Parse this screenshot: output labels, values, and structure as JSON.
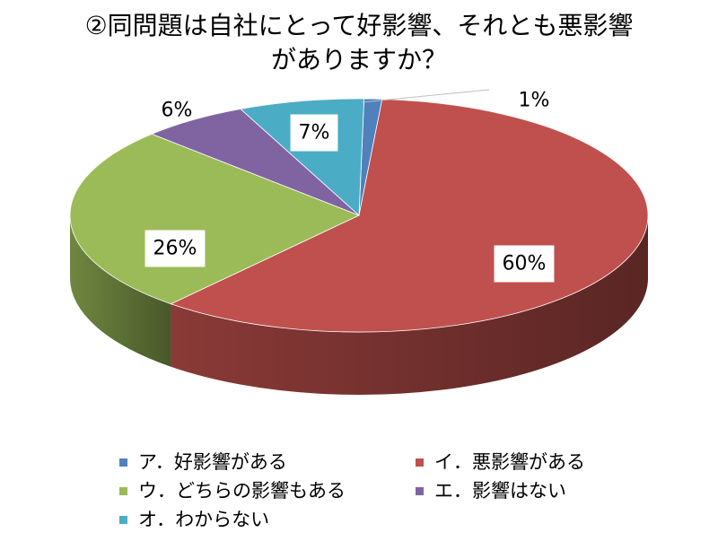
{
  "chart_data": {
    "type": "pie",
    "title_lines": [
      "②同問題は自社にとって好影響、それとも悪影響",
      "がありますか？"
    ],
    "series": [
      {
        "name": "ア．好影響がある",
        "value": 1,
        "label": "1%",
        "color": "#4F81BD"
      },
      {
        "name": "イ．悪影響がある",
        "value": 60,
        "label": "60%",
        "color": "#C0504D"
      },
      {
        "name": "ウ．どちらの影響もある",
        "value": 26,
        "label": "26%",
        "color": "#9BBB59"
      },
      {
        "name": "エ．影響はない",
        "value": 6,
        "label": "6%",
        "color": "#8064A2"
      },
      {
        "name": "オ．わからない",
        "value": 7,
        "label": "7%",
        "color": "#4BACC6"
      }
    ],
    "legend_position": "bottom"
  }
}
